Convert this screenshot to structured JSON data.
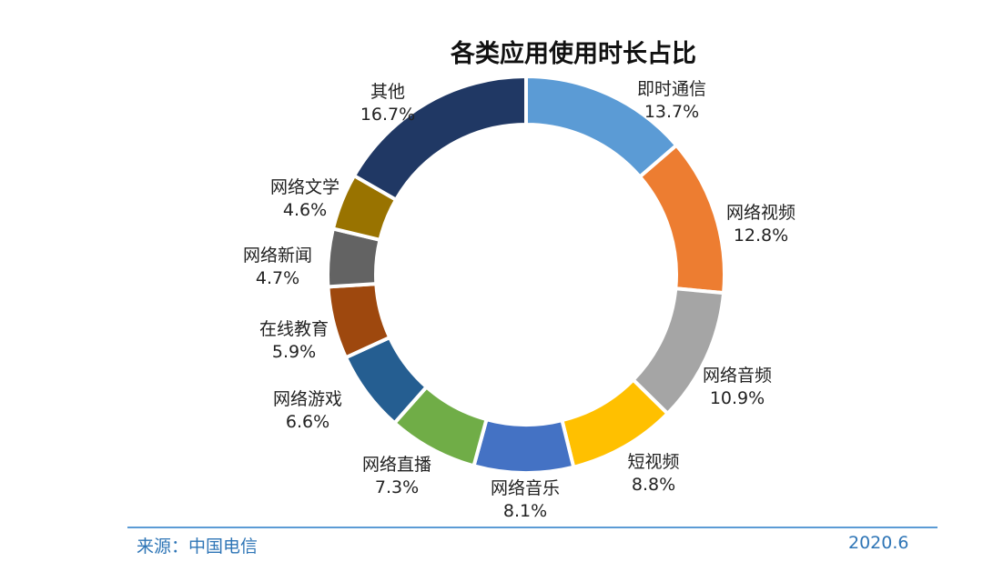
{
  "chart_data": {
    "type": "pie",
    "variant": "donut",
    "title": "各类应用使用时长占比",
    "unit": "%",
    "slices": [
      {
        "label": "即时通信",
        "value": 13.7,
        "display": "13.7%",
        "color": "#5b9bd5"
      },
      {
        "label": "网络视频",
        "value": 12.8,
        "display": "12.8%",
        "color": "#ed7d31"
      },
      {
        "label": "网络音频",
        "value": 10.9,
        "display": "10.9%",
        "color": "#a5a5a5"
      },
      {
        "label": "短视频",
        "value": 8.8,
        "display": "8.8%",
        "color": "#ffc000"
      },
      {
        "label": "网络音乐",
        "value": 8.1,
        "display": "8.1%",
        "color": "#4472c4"
      },
      {
        "label": "网络直播",
        "value": 7.3,
        "display": "7.3%",
        "color": "#70ad47"
      },
      {
        "label": "网络游戏",
        "value": 6.6,
        "display": "6.6%",
        "color": "#255e91"
      },
      {
        "label": "在线教育",
        "value": 5.9,
        "display": "5.9%",
        "color": "#9e480e"
      },
      {
        "label": "网络新闻",
        "value": 4.7,
        "display": "4.7%",
        "color": "#636363"
      },
      {
        "label": "网络文学",
        "value": 4.6,
        "display": "4.6%",
        "color": "#997300"
      },
      {
        "label": "其他",
        "value": 16.7,
        "display": "16.7%",
        "color": "#203864"
      }
    ]
  },
  "footer": {
    "source": "来源：中国电信",
    "date": "2020.6",
    "text_color": "#2e75b6",
    "line_color": "#5b9bd5"
  }
}
